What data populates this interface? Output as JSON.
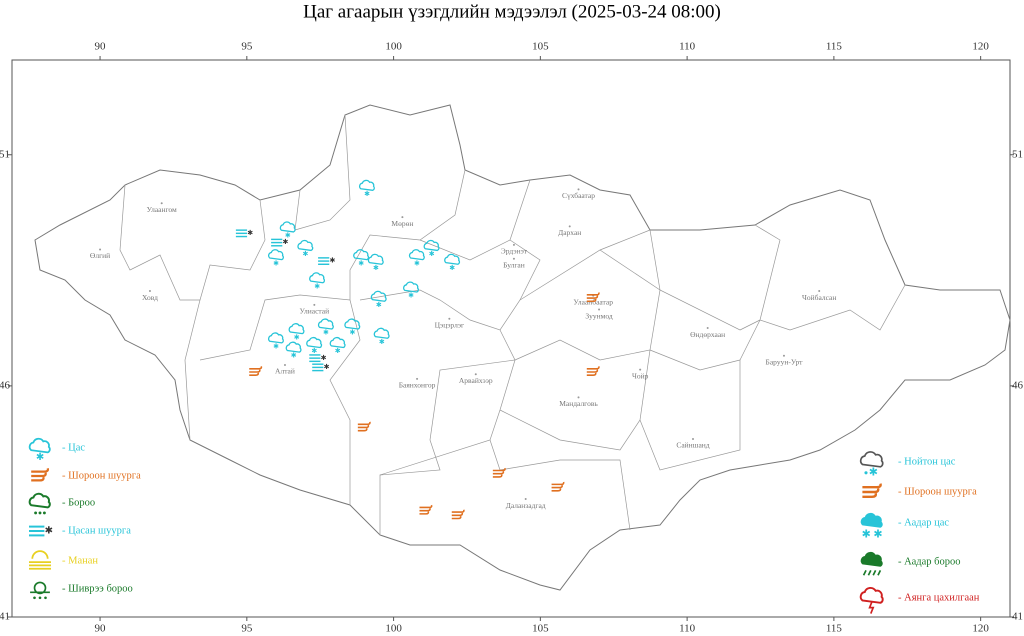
{
  "map": {
    "title": "Цаг агаарын үзэгдлийн мэдээлэл (2025-03-24 08:00)",
    "lonlim": [
      87,
      121
    ],
    "latlim": [
      41,
      53.05
    ],
    "lon_ticks": [
      90,
      95,
      100,
      105,
      110,
      115,
      120
    ],
    "lat_ticks": [
      51,
      46,
      41
    ],
    "places": [
      {
        "name": "Улаангом",
        "lon": 92.1,
        "lat": 49.8
      },
      {
        "name": "Өлгий",
        "lon": 90.0,
        "lat": 48.8
      },
      {
        "name": "Ховд",
        "lon": 91.7,
        "lat": 47.9
      },
      {
        "name": "Улиастай",
        "lon": 97.3,
        "lat": 47.6
      },
      {
        "name": "Алтай",
        "lon": 96.3,
        "lat": 46.3
      },
      {
        "name": "Мөрөн",
        "lon": 100.3,
        "lat": 49.5
      },
      {
        "name": "Эрдэнэт",
        "lon": 104.1,
        "lat": 48.9
      },
      {
        "name": "Булган",
        "lon": 104.1,
        "lat": 48.6
      },
      {
        "name": "Сүхбаатар",
        "lon": 106.3,
        "lat": 50.1
      },
      {
        "name": "Дархан",
        "lon": 106.0,
        "lat": 49.3
      },
      {
        "name": "Улаанбаатар",
        "lon": 106.8,
        "lat": 47.8
      },
      {
        "name": "Зуунмод",
        "lon": 107.0,
        "lat": 47.5
      },
      {
        "name": "Цэцэрлэг",
        "lon": 101.9,
        "lat": 47.3
      },
      {
        "name": "Баянхонгор",
        "lon": 100.8,
        "lat": 46.0
      },
      {
        "name": "Арвайхээр",
        "lon": 102.8,
        "lat": 46.1
      },
      {
        "name": "Мандалговь",
        "lon": 106.3,
        "lat": 45.6
      },
      {
        "name": "Даланзадгад",
        "lon": 104.5,
        "lat": 43.4
      },
      {
        "name": "Сайншанд",
        "lon": 110.2,
        "lat": 44.7
      },
      {
        "name": "Чойр",
        "lon": 108.4,
        "lat": 46.2
      },
      {
        "name": "Өндөрхаан",
        "lon": 110.7,
        "lat": 47.1
      },
      {
        "name": "Баруун-Урт",
        "lon": 113.3,
        "lat": 46.5
      },
      {
        "name": "Чойбалсан",
        "lon": 114.5,
        "lat": 47.9
      }
    ],
    "legend_left": [
      {
        "label": "- Цас",
        "color": "#27c4d8",
        "points": [
          [
            99.1,
            50.3
          ],
          [
            96.4,
            49.4
          ],
          [
            96.0,
            48.8
          ],
          [
            97.0,
            49.0
          ],
          [
            98.9,
            48.8
          ],
          [
            99.4,
            48.7
          ],
          [
            97.4,
            48.3
          ],
          [
            100.8,
            48.8
          ],
          [
            101.3,
            49.0
          ],
          [
            102.0,
            48.7
          ],
          [
            99.5,
            47.9
          ],
          [
            100.6,
            48.1
          ],
          [
            97.7,
            47.3
          ],
          [
            98.6,
            47.3
          ],
          [
            96.7,
            47.2
          ],
          [
            96.0,
            47.0
          ],
          [
            96.6,
            46.8
          ],
          [
            97.3,
            46.9
          ],
          [
            98.1,
            46.9
          ],
          [
            99.6,
            47.1
          ]
        ]
      },
      {
        "label": "- Шороон шуурга",
        "color": "#e07020",
        "points": [
          [
            106.8,
            47.9
          ],
          [
            95.3,
            46.3
          ],
          [
            106.8,
            46.3
          ],
          [
            99.0,
            45.1
          ],
          [
            103.6,
            44.1
          ],
          [
            105.6,
            43.8
          ],
          [
            101.1,
            43.3
          ],
          [
            102.2,
            43.2
          ]
        ]
      },
      {
        "label": "- Бороо",
        "color": "#1a7a2a",
        "points": []
      },
      {
        "label": "- Цасан шуурга",
        "color": "#27c4d8",
        "points": [
          [
            94.9,
            49.3
          ],
          [
            96.1,
            49.1
          ],
          [
            97.7,
            48.7
          ],
          [
            97.4,
            46.6
          ],
          [
            97.5,
            46.4
          ]
        ]
      },
      {
        "label": "- Манан",
        "color": "#e8d020",
        "points": []
      },
      {
        "label": "- Шиврээ бороо",
        "color": "#1a7a2a",
        "points": []
      }
    ],
    "legend_right": [
      {
        "label": "- Нойтон цас",
        "color": "#27c4d8"
      },
      {
        "label": "- Шороон шуурга",
        "color": "#e07020"
      },
      {
        "label": "- Аадар цас",
        "color": "#27c4d8"
      },
      {
        "label": "- Аадар бороо",
        "color": "#1a7a2a"
      },
      {
        "label": "- Аянга цахилгаан",
        "color": "#d02020"
      }
    ]
  }
}
